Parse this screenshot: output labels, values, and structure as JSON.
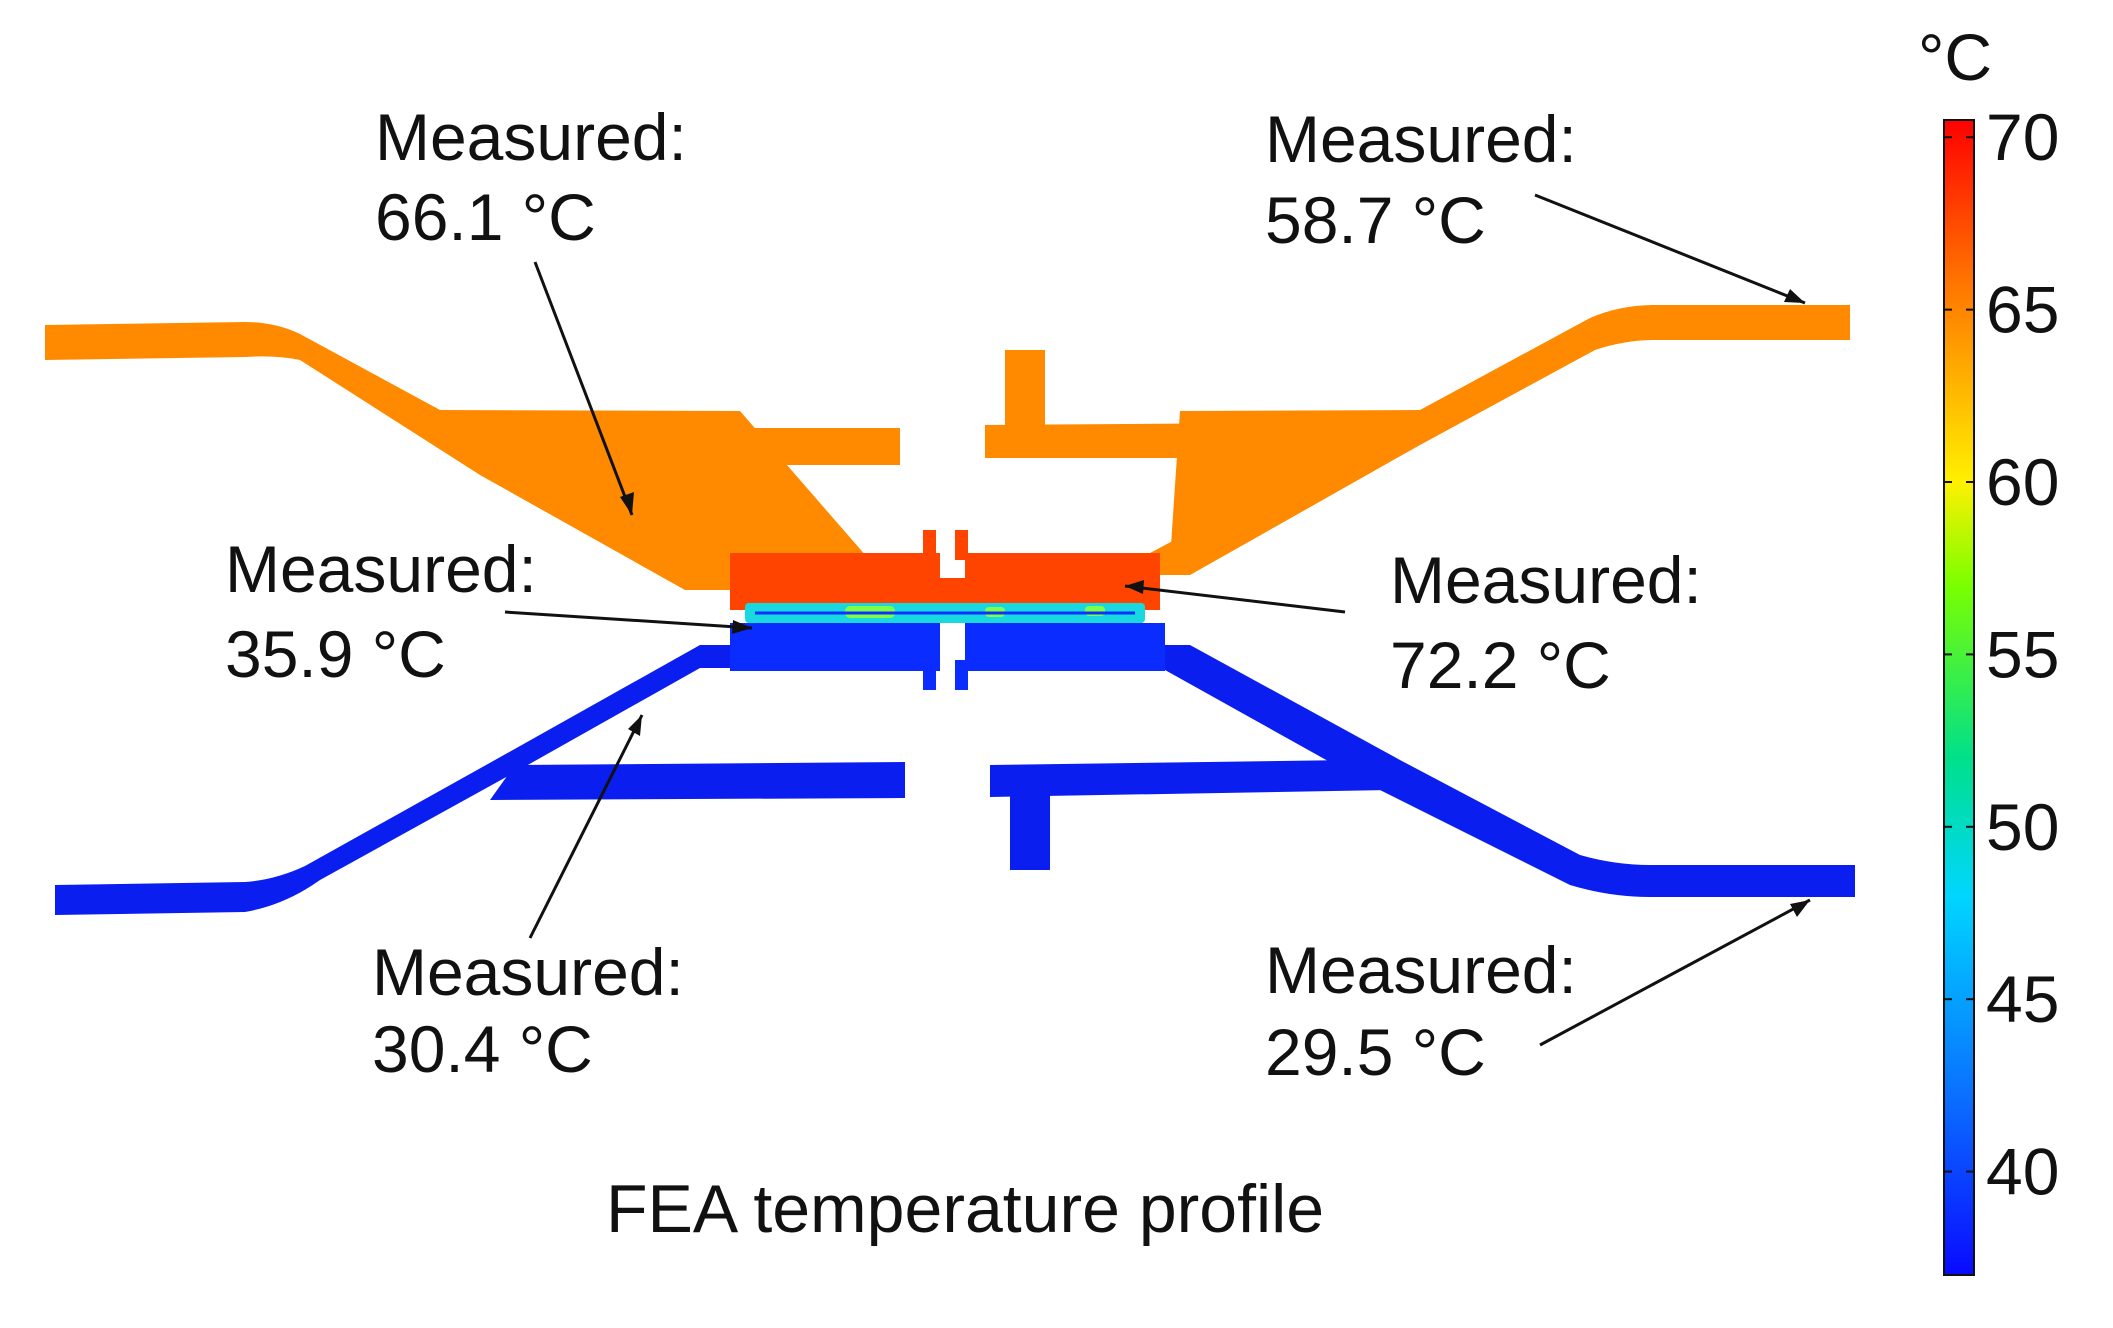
{
  "colors": {
    "hot_plate": "#ff8a00",
    "hot_junction": "#ff4400",
    "cold_plate": "#0a1ef0",
    "cold_junction": "#0a2cff",
    "interface_layer": "#19d9e0",
    "interface_hot_spot": "#7dff4a",
    "text": "#111111"
  },
  "annotations": [
    {
      "id": "top-left",
      "label": "Measured:",
      "value": "66.1 °C"
    },
    {
      "id": "top-right",
      "label": "Measured:",
      "value": "58.7 °C"
    },
    {
      "id": "mid-left",
      "label": "Measured:",
      "value": "35.9 °C"
    },
    {
      "id": "mid-right",
      "label": "Measured:",
      "value": "72.2 °C"
    },
    {
      "id": "bottom-left",
      "label": "Measured:",
      "value": "30.4 °C"
    },
    {
      "id": "bottom-right",
      "label": "Measured:",
      "value": "29.5 °C"
    }
  ],
  "caption": "FEA temperature profile",
  "colorbar": {
    "unit": "°C",
    "min": 37,
    "max": 70.5,
    "ticks": [
      70,
      65,
      60,
      55,
      50,
      45,
      40
    ],
    "tick_labels": [
      "70",
      "65",
      "60",
      "55",
      "50",
      "45",
      "40"
    ],
    "stops": [
      {
        "value": 37,
        "color": "#0a0aff"
      },
      {
        "value": 42,
        "color": "#0a6cff"
      },
      {
        "value": 48,
        "color": "#00d6ff"
      },
      {
        "value": 52,
        "color": "#00e08a"
      },
      {
        "value": 57,
        "color": "#7aff00"
      },
      {
        "value": 60,
        "color": "#fff000"
      },
      {
        "value": 63,
        "color": "#ffb000"
      },
      {
        "value": 66,
        "color": "#ff7000"
      },
      {
        "value": 70.5,
        "color": "#ff0000"
      }
    ]
  }
}
